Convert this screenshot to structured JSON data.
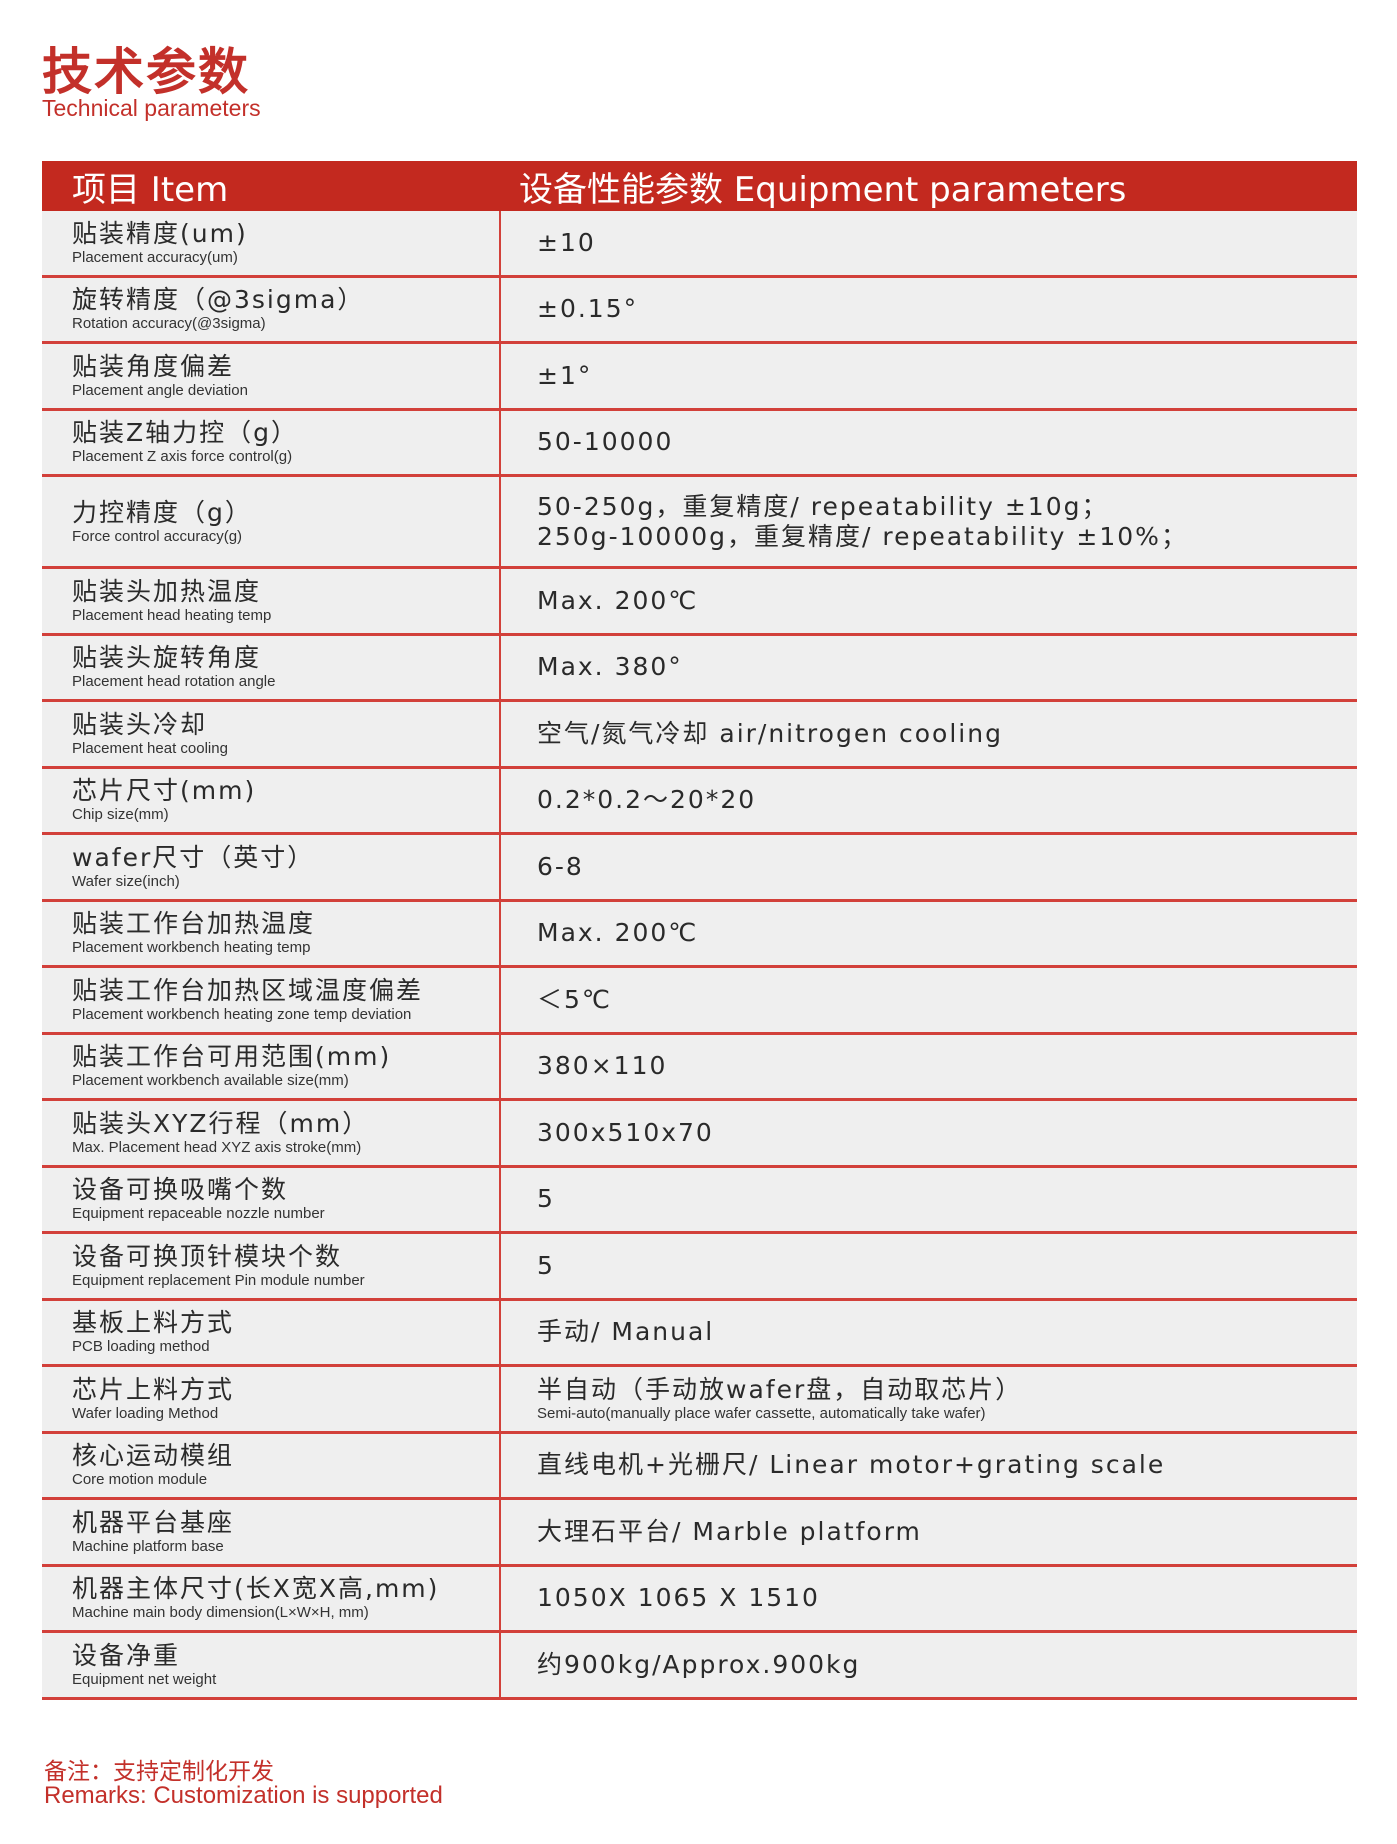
{
  "title": {
    "cn": "技术参数",
    "en": "Technical parameters"
  },
  "header": {
    "item": "项目 Item",
    "params": "设备性能参数  Equipment parameters"
  },
  "rows": [
    {
      "cn": "贴装精度(um)",
      "en": "Placement accuracy(um)",
      "value": "±10"
    },
    {
      "cn": "旋转精度（@3sigma）",
      "en": "Rotation accuracy(@3sigma)",
      "value": "±0.15°"
    },
    {
      "cn": "贴装角度偏差",
      "en": "Placement angle deviation",
      "value": "±1°"
    },
    {
      "cn": "贴装Z轴力控（g）",
      "en": "Placement Z axis force control(g)",
      "value": "50-10000"
    },
    {
      "cn": "力控精度（g）",
      "en": "Force control accuracy(g)",
      "value": "50-250g，重复精度/ repeatability ±10g；\n250g-10000g，重复精度/ repeatability ±10%；"
    },
    {
      "cn": "贴装头加热温度",
      "en": "Placement head heating temp",
      "value": "Max. 200℃"
    },
    {
      "cn": "贴装头旋转角度",
      "en": "Placement head rotation angle",
      "value": "Max. 380°"
    },
    {
      "cn": "贴装头冷却",
      "en": "Placement heat cooling",
      "value": "空气/氮气冷却 air/nitrogen cooling"
    },
    {
      "cn": "芯片尺寸(mm)",
      "en": "Chip size(mm)",
      "value": "0.2*0.2～20*20"
    },
    {
      "cn": "wafer尺寸（英寸）",
      "en": "Wafer size(inch)",
      "value": "6-8"
    },
    {
      "cn": "贴装工作台加热温度",
      "en": "Placement workbench heating temp",
      "value": "Max. 200℃"
    },
    {
      "cn": "贴装工作台加热区域温度偏差",
      "en": "Placement workbench heating zone temp deviation",
      "value": "＜5℃"
    },
    {
      "cn": "贴装工作台可用范围(mm)",
      "en": "Placement workbench available size(mm)",
      "value": "380×110"
    },
    {
      "cn": "贴装头XYZ行程（mm）",
      "en": "Max. Placement head  XYZ axis stroke(mm)",
      "value": "300x510x70"
    },
    {
      "cn": "设备可换吸嘴个数",
      "en": "Equipment repaceable nozzle number",
      "value": "5"
    },
    {
      "cn": "设备可换顶针模块个数",
      "en": "Equipment replacement Pin module number",
      "value": "5"
    },
    {
      "cn": "基板上料方式",
      "en": "PCB loading method",
      "value": "手动/ Manual"
    },
    {
      "cn": "芯片上料方式",
      "en": "Wafer loading Method",
      "value": "半自动（手动放wafer盘，自动取芯片）",
      "value_sub": "Semi-auto(manually place wafer cassette, automatically take wafer)"
    },
    {
      "cn": "核心运动模组",
      "en": "Core motion module",
      "value": "直线电机+光栅尺/ Linear motor+grating scale"
    },
    {
      "cn": "机器平台基座",
      "en": "Machine platform base",
      "value": "大理石平台/ Marble platform"
    },
    {
      "cn": "机器主体尺寸(长X宽X高,mm)",
      "en": "Machine main body dimension(L×W×H, mm)",
      "value": "1050X 1065 X 1510"
    },
    {
      "cn": "设备净重",
      "en": "Equipment net weight",
      "value": "约900kg/Approx.900kg"
    }
  ],
  "remarks": {
    "cn": "备注：支持定制化开发",
    "en": "Remarks: Customization is supported"
  },
  "colors": {
    "accent": "#c3291f",
    "row_bg": "#efefef"
  }
}
